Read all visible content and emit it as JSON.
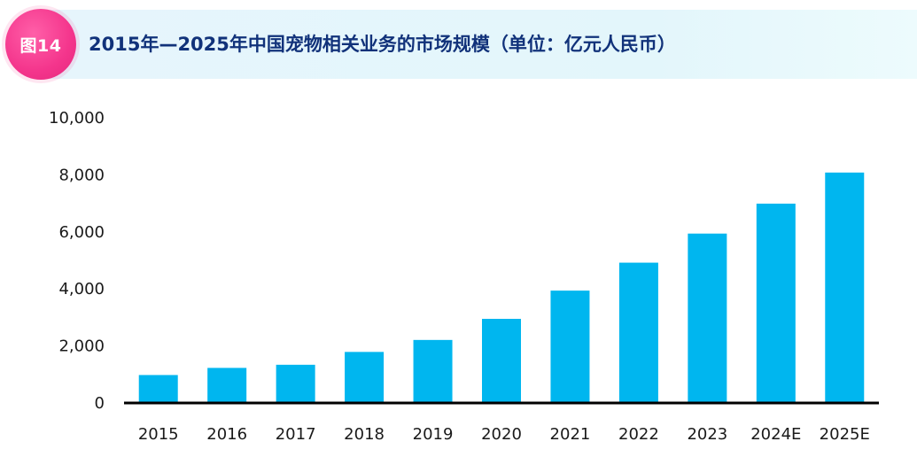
{
  "header": {
    "badge": "图14",
    "title": "2015年—2025年中国宠物相关业务的市场规模（单位：亿元人民币）"
  },
  "colors": {
    "bar": "#00b6ef",
    "axis": "#000000",
    "title": "#11327a",
    "badge": "#f4358c",
    "header_band": "#e4f6fb"
  },
  "chart_data": {
    "type": "bar",
    "title": "2015年—2025年中国宠物相关业务的市场规模（单位：亿元人民币）",
    "categories": [
      "2015",
      "2016",
      "2017",
      "2018",
      "2019",
      "2020",
      "2021",
      "2022",
      "2023",
      "2024E",
      "2025E"
    ],
    "values": [
      980,
      1230,
      1340,
      1790,
      2210,
      2950,
      3940,
      4920,
      5940,
      6990,
      8080
    ],
    "ylim": [
      0,
      10000
    ],
    "yticks": [
      0,
      2000,
      4000,
      6000,
      8000,
      10000
    ],
    "ytick_labels": [
      "0",
      "2,000",
      "4,000",
      "6,000",
      "8,000",
      "10,000"
    ],
    "grid": false,
    "legend": false
  }
}
